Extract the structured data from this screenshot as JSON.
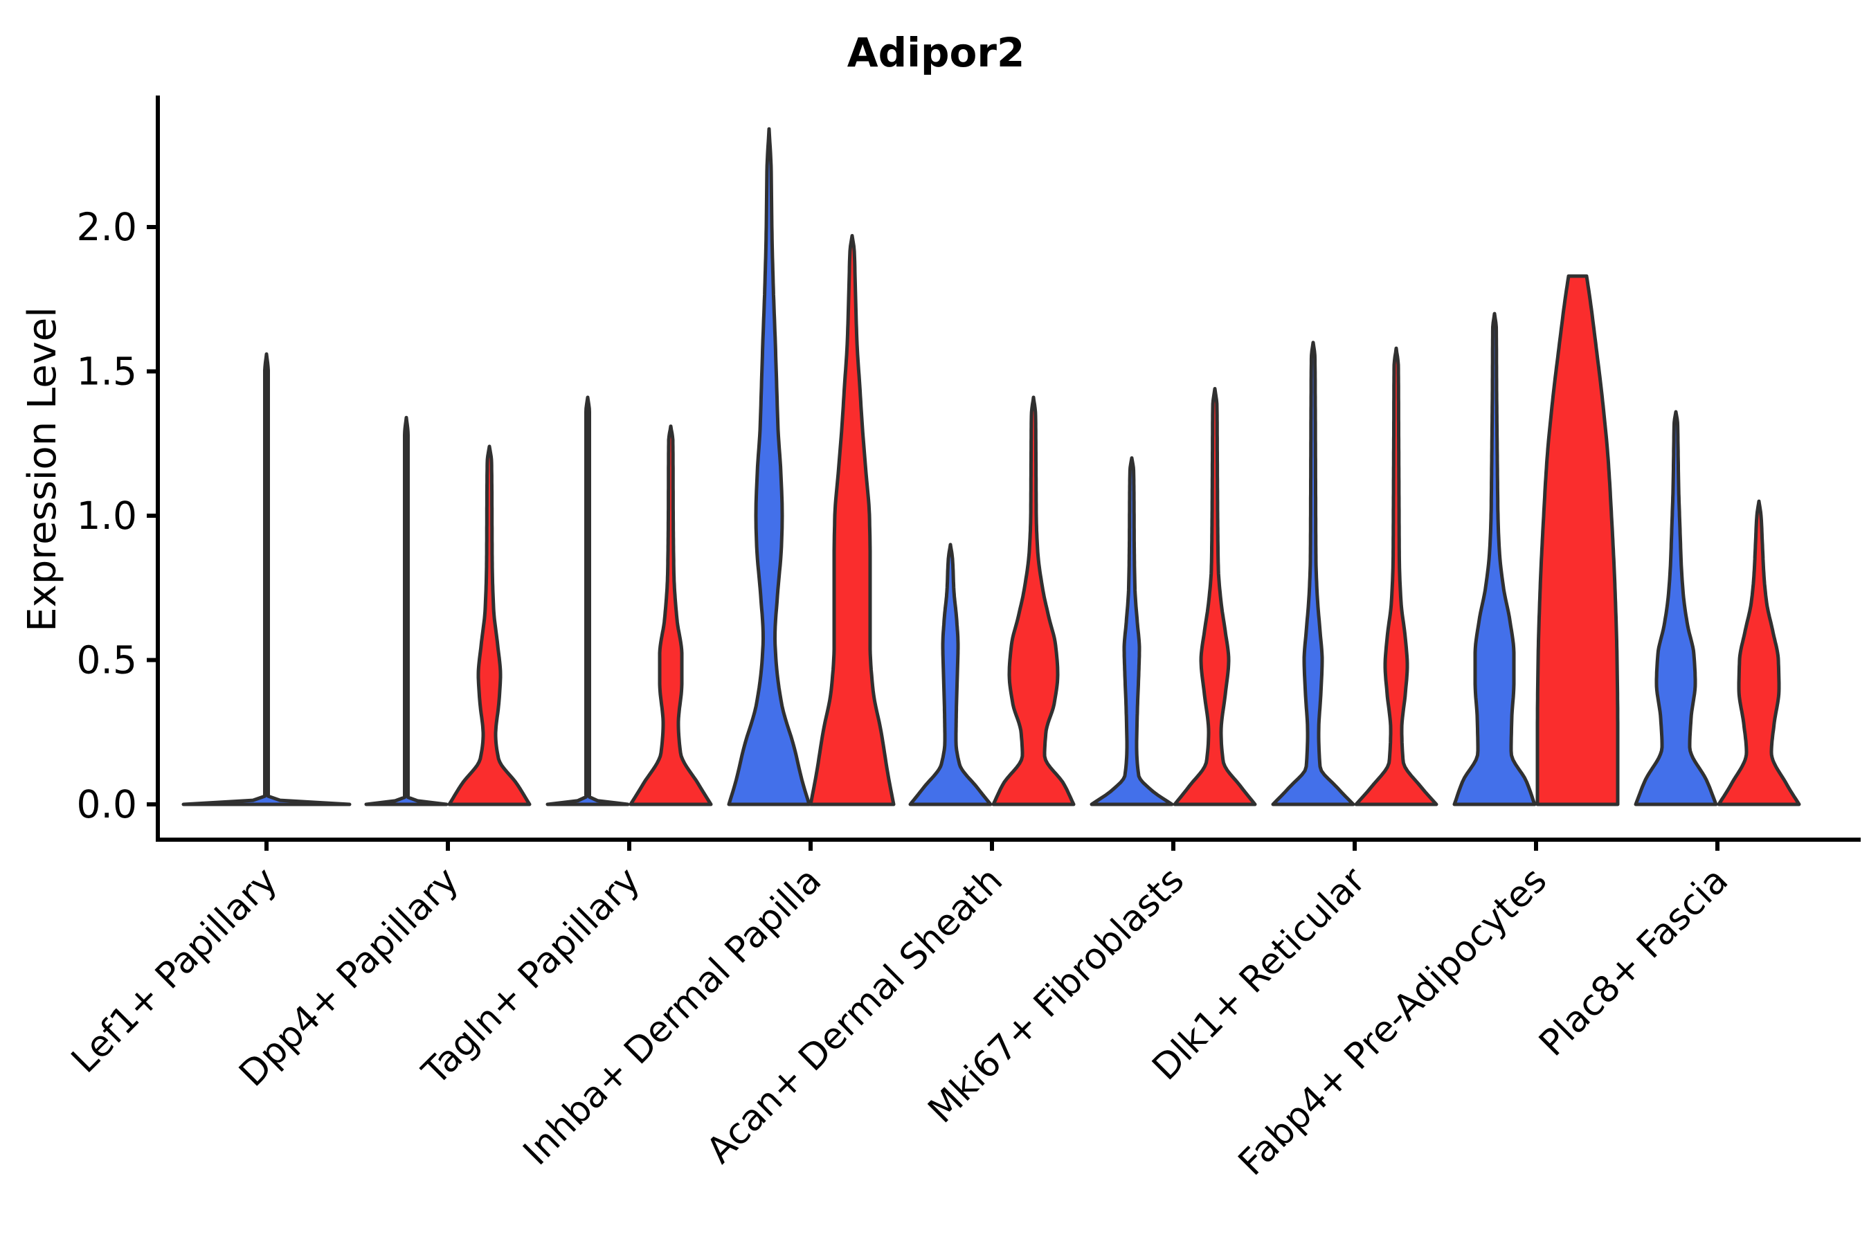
{
  "chart_data": {
    "type": "violin",
    "title": "Adipor2",
    "ylabel": "Expression Level",
    "xlabel": "",
    "ytick_labels": [
      "0.0",
      "0.5",
      "1.0",
      "1.5",
      "2.0"
    ],
    "ytick_values": [
      0.0,
      0.5,
      1.0,
      1.5,
      2.0
    ],
    "ylim": [
      0,
      2.4
    ],
    "grid": false,
    "legend_position": "none",
    "categories": [
      "Lef1+ Papillary",
      "Dpp4+ Papillary",
      "Tagln+ Papillary",
      "Inhba+ Dermal Papilla",
      "Acan+ Dermal Sheath",
      "Mki67+ Fibroblasts",
      "Dlk1+ Reticular",
      "Fabp4+ Pre-Adipocytes",
      "Plac8+ Fascia"
    ],
    "colors": {
      "blue": "#4370EA",
      "red": "#FA2D2D",
      "outline": "#303030",
      "text": "#000000",
      "background": "#FFFFFF"
    },
    "violins": [
      {
        "category": "Lef1+ Papillary",
        "group": "blue",
        "position": "center",
        "tip": 1.56,
        "flat_top": false,
        "profile": [
          [
            0,
            120
          ],
          [
            0.02,
            2.5
          ],
          [
            0.5,
            2.5
          ],
          [
            1.5,
            2.5
          ],
          [
            1.56,
            0
          ]
        ]
      },
      {
        "category": "Dpp4+ Papillary",
        "group": "blue",
        "position": "left",
        "tip": 1.34,
        "flat_top": false,
        "profile": [
          [
            0,
            58
          ],
          [
            0.02,
            2.5
          ],
          [
            0.5,
            2.5
          ],
          [
            1.28,
            2.5
          ],
          [
            1.34,
            0
          ]
        ]
      },
      {
        "category": "Dpp4+ Papillary",
        "group": "red",
        "position": "right",
        "tip": 1.24,
        "flat_top": false,
        "profile": [
          [
            0,
            58
          ],
          [
            0.07,
            40
          ],
          [
            0.16,
            13
          ],
          [
            0.24,
            9
          ],
          [
            0.36,
            14
          ],
          [
            0.45,
            16
          ],
          [
            0.55,
            12
          ],
          [
            0.68,
            6
          ],
          [
            0.85,
            4
          ],
          [
            1.1,
            3.5
          ],
          [
            1.19,
            3
          ],
          [
            1.24,
            0
          ]
        ]
      },
      {
        "category": "Tagln+ Papillary",
        "group": "blue",
        "position": "left",
        "tip": 1.41,
        "flat_top": false,
        "profile": [
          [
            0,
            58
          ],
          [
            0.02,
            2.5
          ],
          [
            0.5,
            2.5
          ],
          [
            1.36,
            2.5
          ],
          [
            1.41,
            0
          ]
        ]
      },
      {
        "category": "Tagln+ Papillary",
        "group": "red",
        "position": "right",
        "tip": 1.31,
        "flat_top": false,
        "profile": [
          [
            0,
            58
          ],
          [
            0.07,
            40
          ],
          [
            0.18,
            14
          ],
          [
            0.28,
            11
          ],
          [
            0.42,
            16
          ],
          [
            0.52,
            16
          ],
          [
            0.64,
            9
          ],
          [
            0.8,
            4.5
          ],
          [
            1.0,
            3.5
          ],
          [
            1.26,
            3
          ],
          [
            1.31,
            0
          ]
        ]
      },
      {
        "category": "Inhba+ Dermal Papilla",
        "group": "blue",
        "position": "left",
        "tip": 2.34,
        "flat_top": false,
        "profile": [
          [
            0,
            58
          ],
          [
            0.08,
            48
          ],
          [
            0.2,
            36
          ],
          [
            0.35,
            18
          ],
          [
            0.5,
            10
          ],
          [
            0.58,
            8.5
          ],
          [
            0.72,
            12
          ],
          [
            0.9,
            18
          ],
          [
            1.0,
            19
          ],
          [
            1.15,
            17
          ],
          [
            1.3,
            13
          ],
          [
            1.45,
            11
          ],
          [
            1.6,
            9
          ],
          [
            1.8,
            6
          ],
          [
            2.0,
            4
          ],
          [
            2.2,
            3
          ],
          [
            2.34,
            0
          ]
        ]
      },
      {
        "category": "Inhba+ Dermal Papilla",
        "group": "red",
        "position": "right",
        "tip": 1.97,
        "flat_top": false,
        "profile": [
          [
            0,
            60
          ],
          [
            0.1,
            52
          ],
          [
            0.25,
            42
          ],
          [
            0.4,
            30
          ],
          [
            0.55,
            26
          ],
          [
            0.7,
            26
          ],
          [
            0.85,
            26
          ],
          [
            1.0,
            25
          ],
          [
            1.15,
            20
          ],
          [
            1.3,
            15
          ],
          [
            1.45,
            11
          ],
          [
            1.6,
            7
          ],
          [
            1.8,
            4.5
          ],
          [
            1.92,
            3
          ],
          [
            1.97,
            0
          ]
        ]
      },
      {
        "category": "Acan+ Dermal Sheath",
        "group": "blue",
        "position": "left",
        "tip": 0.9,
        "flat_top": false,
        "profile": [
          [
            0,
            58
          ],
          [
            0.06,
            38
          ],
          [
            0.14,
            13
          ],
          [
            0.22,
            8
          ],
          [
            0.32,
            8.5
          ],
          [
            0.45,
            10
          ],
          [
            0.55,
            11
          ],
          [
            0.64,
            9
          ],
          [
            0.74,
            5
          ],
          [
            0.85,
            3
          ],
          [
            0.9,
            0
          ]
        ]
      },
      {
        "category": "Acan+ Dermal Sheath",
        "group": "red",
        "position": "right",
        "tip": 1.41,
        "flat_top": false,
        "profile": [
          [
            0,
            58
          ],
          [
            0.07,
            44
          ],
          [
            0.17,
            16
          ],
          [
            0.25,
            18
          ],
          [
            0.35,
            30
          ],
          [
            0.45,
            35
          ],
          [
            0.55,
            32
          ],
          [
            0.65,
            22
          ],
          [
            0.75,
            13
          ],
          [
            0.88,
            6
          ],
          [
            1.0,
            4
          ],
          [
            1.2,
            3.5
          ],
          [
            1.35,
            3
          ],
          [
            1.41,
            0
          ]
        ]
      },
      {
        "category": "Mki67+ Fibroblasts",
        "group": "blue",
        "position": "left",
        "tip": 1.2,
        "flat_top": false,
        "profile": [
          [
            0,
            58
          ],
          [
            0.05,
            28
          ],
          [
            0.1,
            10
          ],
          [
            0.2,
            7
          ],
          [
            0.32,
            8
          ],
          [
            0.45,
            10
          ],
          [
            0.54,
            11
          ],
          [
            0.63,
            8
          ],
          [
            0.75,
            4.5
          ],
          [
            0.9,
            3.5
          ],
          [
            1.1,
            3
          ],
          [
            1.16,
            2.5
          ],
          [
            1.2,
            0
          ]
        ]
      },
      {
        "category": "Mki67+ Fibroblasts",
        "group": "red",
        "position": "right",
        "tip": 1.44,
        "flat_top": false,
        "profile": [
          [
            0,
            58
          ],
          [
            0.06,
            38
          ],
          [
            0.15,
            12
          ],
          [
            0.25,
            9
          ],
          [
            0.38,
            15
          ],
          [
            0.5,
            20
          ],
          [
            0.6,
            15
          ],
          [
            0.7,
            9
          ],
          [
            0.82,
            5
          ],
          [
            1.0,
            4
          ],
          [
            1.2,
            3.5
          ],
          [
            1.38,
            3
          ],
          [
            1.44,
            0
          ]
        ]
      },
      {
        "category": "Dlk1+ Reticular",
        "group": "blue",
        "position": "left",
        "tip": 1.6,
        "flat_top": false,
        "profile": [
          [
            0,
            58
          ],
          [
            0.06,
            34
          ],
          [
            0.13,
            10
          ],
          [
            0.25,
            8
          ],
          [
            0.38,
            11
          ],
          [
            0.5,
            13
          ],
          [
            0.6,
            10
          ],
          [
            0.72,
            6
          ],
          [
            0.85,
            4
          ],
          [
            1.1,
            3.5
          ],
          [
            1.4,
            3
          ],
          [
            1.55,
            2.5
          ],
          [
            1.6,
            0
          ]
        ]
      },
      {
        "category": "Dlk1+ Reticular",
        "group": "red",
        "position": "right",
        "tip": 1.58,
        "flat_top": false,
        "profile": [
          [
            0,
            58
          ],
          [
            0.06,
            36
          ],
          [
            0.15,
            10
          ],
          [
            0.26,
            8
          ],
          [
            0.38,
            13
          ],
          [
            0.48,
            16
          ],
          [
            0.58,
            13
          ],
          [
            0.7,
            7
          ],
          [
            0.85,
            4.5
          ],
          [
            1.05,
            4
          ],
          [
            1.3,
            3.5
          ],
          [
            1.52,
            3
          ],
          [
            1.58,
            0
          ]
        ]
      },
      {
        "category": "Fabp4+ Pre-Adipocytes",
        "group": "blue",
        "position": "left",
        "tip": 1.7,
        "flat_top": false,
        "profile": [
          [
            0,
            58
          ],
          [
            0.08,
            46
          ],
          [
            0.18,
            24
          ],
          [
            0.3,
            25
          ],
          [
            0.42,
            28
          ],
          [
            0.52,
            28
          ],
          [
            0.64,
            22
          ],
          [
            0.75,
            13
          ],
          [
            0.88,
            7
          ],
          [
            1.0,
            5
          ],
          [
            1.2,
            4
          ],
          [
            1.45,
            3
          ],
          [
            1.65,
            2.5
          ],
          [
            1.7,
            0
          ]
        ]
      },
      {
        "category": "Fabp4+ Pre-Adipocytes",
        "group": "red",
        "position": "right",
        "tip": 1.83,
        "flat_top": true,
        "profile": [
          [
            0,
            58
          ],
          [
            0.25,
            58
          ],
          [
            0.5,
            57
          ],
          [
            0.75,
            54
          ],
          [
            1.0,
            49
          ],
          [
            1.2,
            44
          ],
          [
            1.4,
            36
          ],
          [
            1.6,
            26
          ],
          [
            1.75,
            18
          ],
          [
            1.83,
            13
          ]
        ]
      },
      {
        "category": "Plac8+ Fascia",
        "group": "blue",
        "position": "left",
        "tip": 1.36,
        "flat_top": false,
        "profile": [
          [
            0,
            58
          ],
          [
            0.08,
            45
          ],
          [
            0.2,
            20
          ],
          [
            0.3,
            22
          ],
          [
            0.42,
            28
          ],
          [
            0.52,
            26
          ],
          [
            0.62,
            17
          ],
          [
            0.72,
            11
          ],
          [
            0.82,
            8
          ],
          [
            0.95,
            6
          ],
          [
            1.1,
            4
          ],
          [
            1.25,
            3
          ],
          [
            1.32,
            2.5
          ],
          [
            1.36,
            0
          ]
        ]
      },
      {
        "category": "Plac8+ Fascia",
        "group": "red",
        "position": "right",
        "tip": 1.05,
        "flat_top": false,
        "profile": [
          [
            0,
            58
          ],
          [
            0.07,
            40
          ],
          [
            0.18,
            18
          ],
          [
            0.28,
            22
          ],
          [
            0.4,
            29
          ],
          [
            0.5,
            28
          ],
          [
            0.6,
            20
          ],
          [
            0.7,
            11
          ],
          [
            0.8,
            7
          ],
          [
            0.9,
            5
          ],
          [
            1.0,
            3
          ],
          [
            1.05,
            0
          ]
        ]
      }
    ]
  }
}
